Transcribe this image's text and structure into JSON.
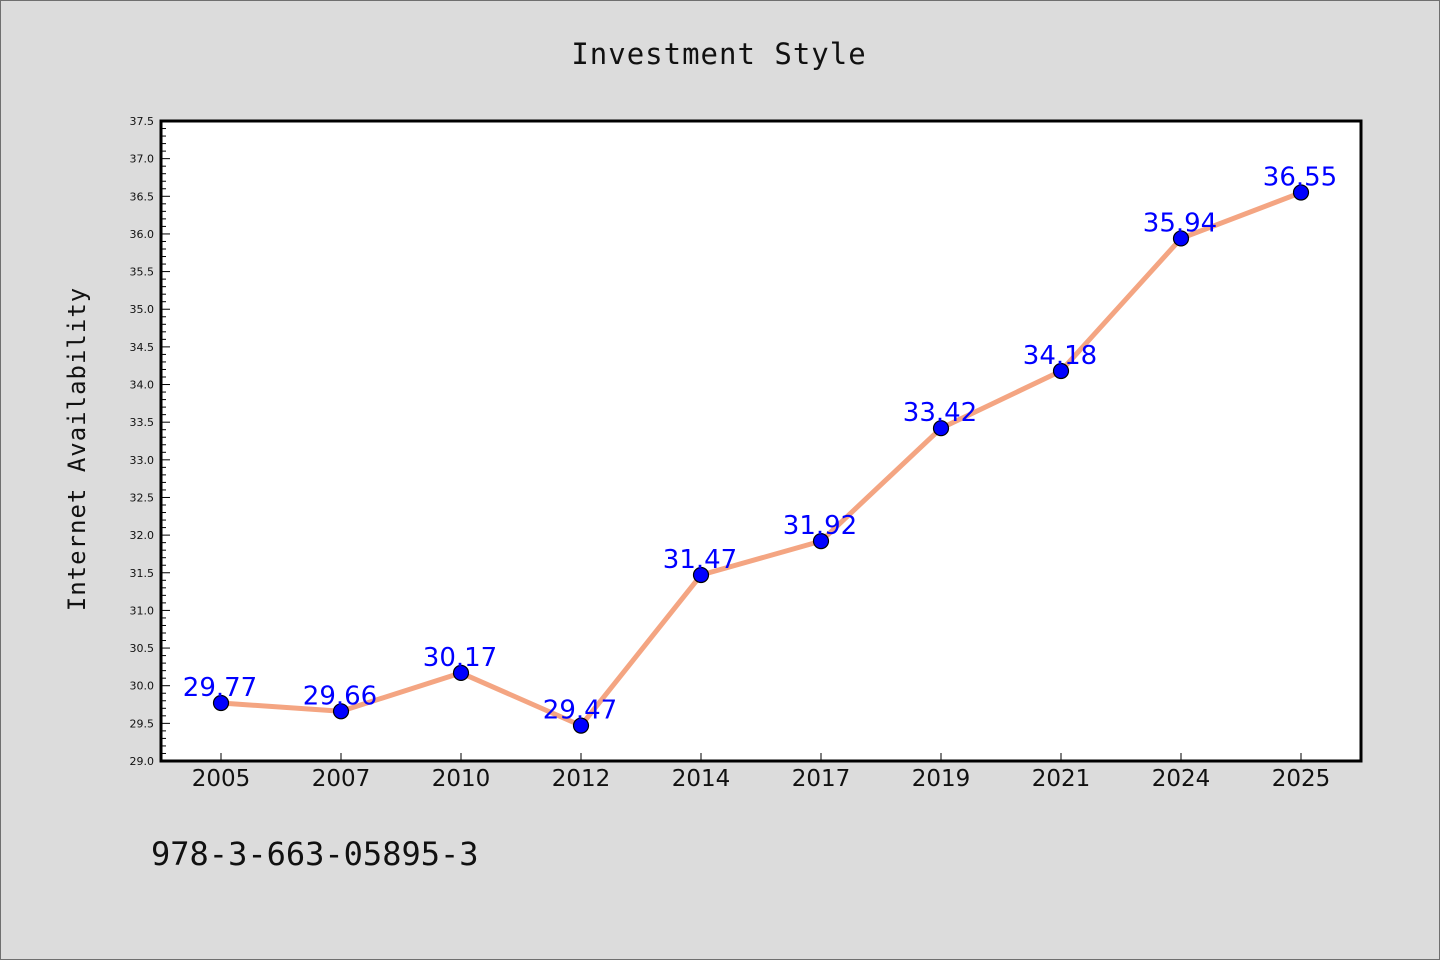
{
  "chart_data": {
    "type": "line",
    "title": "Investment Style",
    "xlabel": "",
    "ylabel": "Internet Availability",
    "categories": [
      "2005",
      "2007",
      "2010",
      "2012",
      "2014",
      "2017",
      "2019",
      "2021",
      "2024",
      "2025"
    ],
    "series": [
      {
        "values": [
          29.77,
          29.66,
          30.17,
          29.47,
          31.47,
          31.92,
          33.42,
          34.18,
          35.94,
          36.55
        ]
      }
    ],
    "data_labels": [
      "29.77",
      "29.66",
      "30.17",
      "29.47",
      "31.47",
      "31.92",
      "33.42",
      "34.18",
      "35.94",
      "36.55"
    ],
    "ylim": [
      29.0,
      37.5
    ],
    "yticks": [
      "29.0",
      "29.5",
      "30.0",
      "30.5",
      "31.0",
      "31.5",
      "32.0",
      "32.5",
      "33.0",
      "33.5",
      "34.0",
      "34.5",
      "35.0",
      "35.5",
      "36.0",
      "36.5",
      "37.0",
      "37.5"
    ],
    "grid": false,
    "legend": "none",
    "colors": {
      "line": "#f4a582",
      "marker": "#0000ff",
      "marker_edge": "#000000",
      "data_label": "#0000ff",
      "background": "#dcdcdc",
      "plot_background": "#ffffff"
    }
  },
  "footer": {
    "isbn": "978-3-663-05895-3"
  }
}
